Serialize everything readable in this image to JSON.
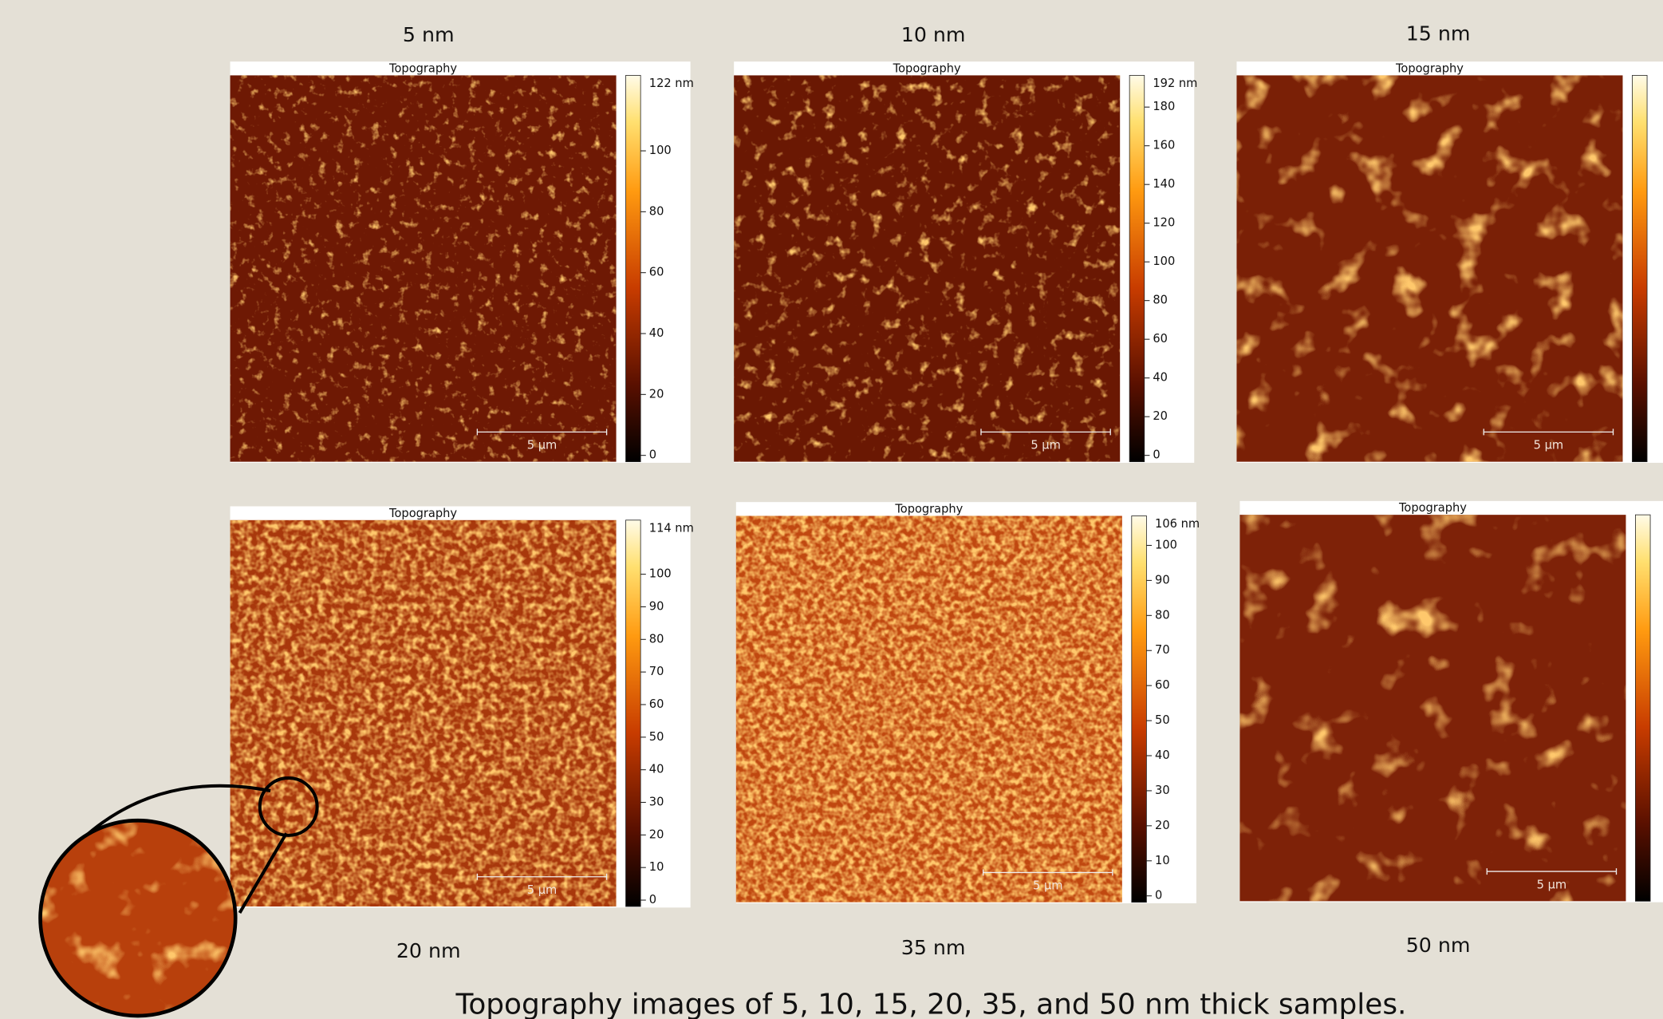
{
  "panels": [
    {
      "thickness": "5 nm",
      "title": "Topography",
      "scale_bar": "5 µm",
      "colorbar": {
        "max": "122 nm",
        "ticks": [
          "100",
          "80",
          "60",
          "40",
          "20",
          "0"
        ]
      }
    },
    {
      "thickness": "10 nm",
      "title": "Topography",
      "scale_bar": "5 µm",
      "colorbar": {
        "max": "192 nm",
        "ticks": [
          "180",
          "160",
          "140",
          "120",
          "100",
          "80",
          "60",
          "40",
          "20",
          "0"
        ]
      }
    },
    {
      "thickness": "15 nm",
      "title": "Topography",
      "scale_bar": "5 µm"
    },
    {
      "thickness": "20 nm",
      "title": "Topography",
      "scale_bar": "5 µm",
      "colorbar": {
        "max": "114 nm",
        "ticks": [
          "100",
          "90",
          "80",
          "70",
          "60",
          "50",
          "40",
          "30",
          "20",
          "10",
          "0"
        ]
      }
    },
    {
      "thickness": "35 nm",
      "title": "Topography",
      "scale_bar": "5 µm",
      "colorbar": {
        "max": "106 nm",
        "ticks": [
          "100",
          "90",
          "80",
          "70",
          "60",
          "50",
          "40",
          "30",
          "20",
          "10",
          "0"
        ]
      }
    },
    {
      "thickness": "50 nm",
      "title": "Topography",
      "scale_bar": "5 µm"
    }
  ],
  "caption": "Topography images of 5, 10, 15, 20, 35, and 50 nm thick samples."
}
